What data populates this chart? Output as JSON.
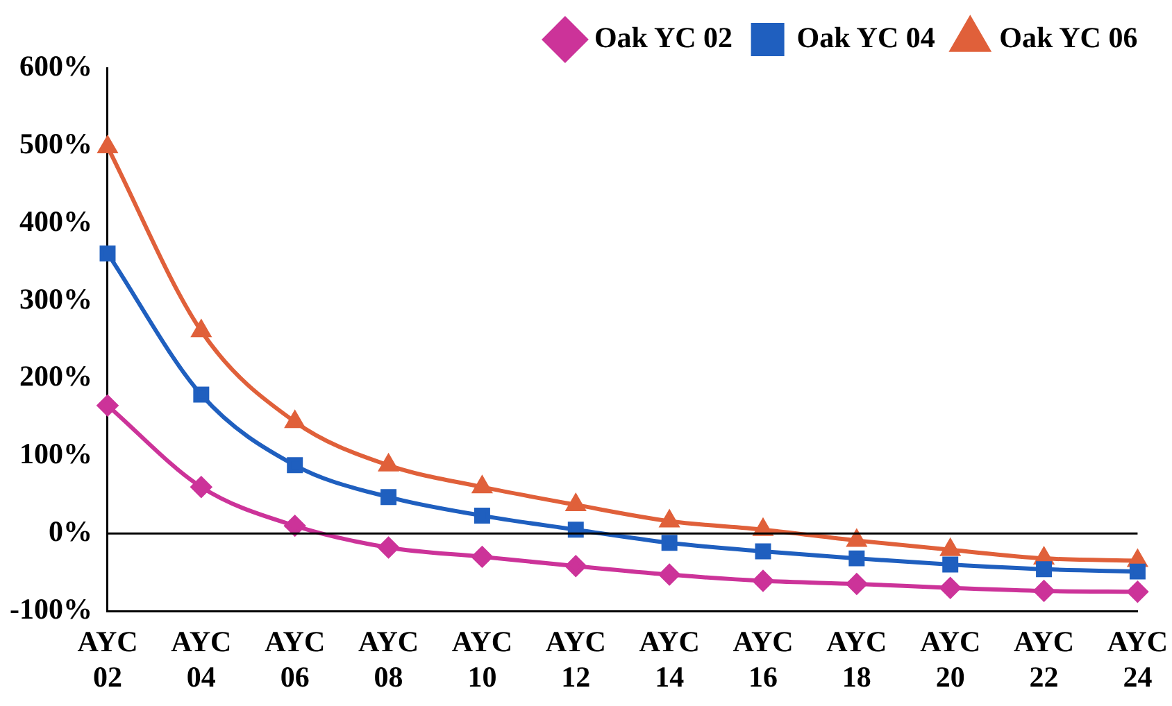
{
  "chart_data": {
    "type": "line",
    "categories": [
      "AYC 02",
      "AYC 04",
      "AYC 06",
      "AYC 08",
      "AYC 10",
      "AYC 12",
      "AYC 14",
      "AYC 16",
      "AYC 18",
      "AYC 20",
      "AYC 22",
      "AYC 24"
    ],
    "series": [
      {
        "name": "Oak YC 02",
        "color": "#cc3399",
        "marker": "diamond",
        "values": [
          165,
          60,
          10,
          -18,
          -30,
          -42,
          -53,
          -61,
          -65,
          -70,
          -74,
          -75
        ]
      },
      {
        "name": "Oak YC 04",
        "color": "#1f5fbf",
        "marker": "square",
        "values": [
          361,
          179,
          88,
          47,
          23,
          5,
          -12,
          -23,
          -32,
          -40,
          -46,
          -49
        ]
      },
      {
        "name": "Oak YC 06",
        "color": "#e0603a",
        "marker": "triangle",
        "values": [
          498,
          261,
          144,
          88,
          60,
          37,
          16,
          5,
          -9,
          -21,
          -32,
          -35
        ]
      }
    ],
    "ylim": [
      -100,
      600
    ],
    "yticks": [
      {
        "value": -100,
        "label": "-100%"
      },
      {
        "value": 0,
        "label": "0%"
      },
      {
        "value": 100,
        "label": "100%"
      },
      {
        "value": 200,
        "label": "200%"
      },
      {
        "value": 300,
        "label": "300%"
      },
      {
        "value": 400,
        "label": "400%"
      },
      {
        "value": 500,
        "label": "500%"
      },
      {
        "value": 600,
        "label": "600%"
      }
    ],
    "ref_lines": [
      {
        "axis": "y",
        "value": 0,
        "color": "#000000"
      }
    ],
    "grid": false,
    "legend": "top right"
  }
}
